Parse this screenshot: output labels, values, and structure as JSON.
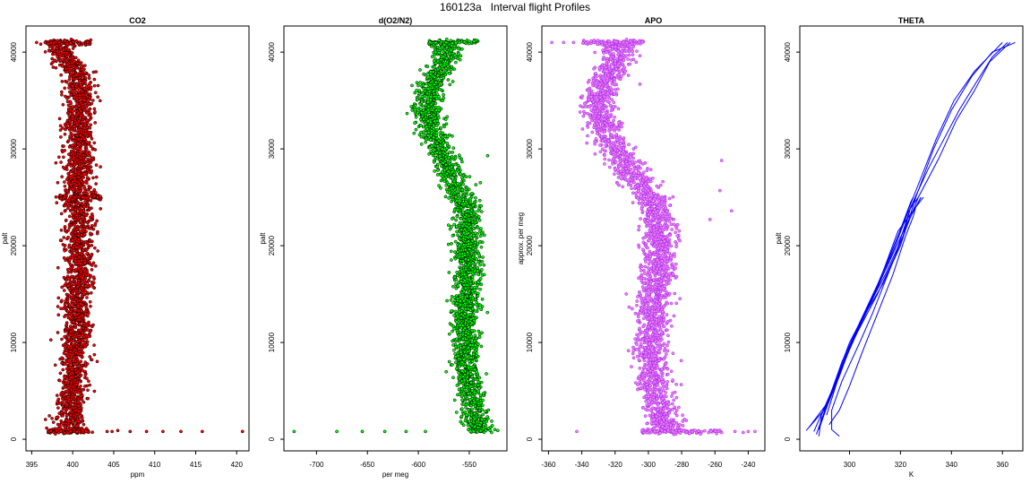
{
  "title": "160123a   Interval flight Profiles",
  "chart_data": [
    {
      "type": "scatter",
      "title": "CO2",
      "xlabel": "ppm",
      "ylabel": "palt",
      "xticks": [
        395,
        400,
        405,
        410,
        415,
        420
      ],
      "yticks": [
        0,
        10000,
        20000,
        30000,
        40000
      ],
      "xlim": [
        394.3,
        421.5
      ],
      "ylim": [
        -1200,
        42700
      ],
      "color": "#ff0000",
      "edge": "#000000",
      "profile": [
        [
          800,
          400.0
        ],
        [
          2000,
          399.6
        ],
        [
          4000,
          399.8
        ],
        [
          6000,
          400.1
        ],
        [
          8000,
          400.2
        ],
        [
          10000,
          400.3
        ],
        [
          12000,
          400.4
        ],
        [
          14000,
          400.3
        ],
        [
          16000,
          400.6
        ],
        [
          18000,
          400.9
        ],
        [
          20000,
          400.7
        ],
        [
          22000,
          400.9
        ],
        [
          24000,
          400.6
        ],
        [
          25000,
          400.5
        ],
        [
          26000,
          400.7
        ],
        [
          28000,
          400.9
        ],
        [
          30000,
          400.8
        ],
        [
          32000,
          400.6
        ],
        [
          34000,
          400.8
        ],
        [
          36000,
          401.0
        ],
        [
          38000,
          400.3
        ],
        [
          39500,
          399.1
        ],
        [
          41000,
          397.8
        ]
      ],
      "spread": 1.6,
      "outliers": [
        [
          395.6,
          41000
        ],
        [
          404.2,
          800
        ],
        [
          404.8,
          800
        ],
        [
          405.5,
          900
        ],
        [
          407.0,
          800
        ],
        [
          409.0,
          800
        ],
        [
          411.0,
          800
        ],
        [
          413.2,
          800
        ],
        [
          415.8,
          800
        ],
        [
          420.7,
          800
        ]
      ],
      "bands": [
        [
          41000,
          396.5,
          402.2
        ],
        [
          800,
          397.0,
          402.0
        ],
        [
          25000,
          398.3,
          403.5
        ]
      ]
    },
    {
      "type": "scatter",
      "title": "d(O2/N2)",
      "xlabel": "per meg",
      "ylabel": "palt",
      "xticks": [
        -700,
        -650,
        -600,
        -550
      ],
      "yticks": [
        0,
        10000,
        20000,
        30000,
        40000
      ],
      "xlim": [
        -732,
        -513
      ],
      "ylim": [
        -1200,
        42700
      ],
      "color": "#00ff00",
      "edge": "#000000",
      "profile": [
        [
          800,
          -540
        ],
        [
          2000,
          -544
        ],
        [
          4000,
          -548
        ],
        [
          6000,
          -551
        ],
        [
          8000,
          -553
        ],
        [
          10000,
          -553
        ],
        [
          12000,
          -554
        ],
        [
          14000,
          -554
        ],
        [
          16000,
          -553
        ],
        [
          18000,
          -552
        ],
        [
          20000,
          -552
        ],
        [
          22000,
          -552
        ],
        [
          24000,
          -554
        ],
        [
          25000,
          -557
        ],
        [
          26000,
          -562
        ],
        [
          28000,
          -570
        ],
        [
          30000,
          -580
        ],
        [
          32000,
          -586
        ],
        [
          34000,
          -592
        ],
        [
          36000,
          -588
        ],
        [
          38000,
          -580
        ],
        [
          39500,
          -572
        ],
        [
          41000,
          -572
        ]
      ],
      "spread": 12,
      "outliers": [
        [
          -722,
          800
        ],
        [
          -680,
          800
        ],
        [
          -655,
          800
        ],
        [
          -633,
          800
        ],
        [
          -612,
          800
        ],
        [
          -593,
          800
        ],
        [
          -528,
          700
        ],
        [
          -522,
          900
        ],
        [
          -606,
          34000
        ],
        [
          -525,
          1000
        ],
        [
          -532,
          29300
        ]
      ],
      "bands": [
        [
          41000,
          -590,
          -541
        ]
      ]
    },
    {
      "type": "scatter",
      "title": "APO",
      "xlabel": "",
      "ylabel": "approx. per meg",
      "xticks": [
        -360,
        -340,
        -320,
        -300,
        -280,
        -260,
        -240
      ],
      "yticks": [
        0,
        10000,
        20000,
        30000,
        40000
      ],
      "xlim": [
        -364,
        -230
      ],
      "ylim": [
        -1200,
        42700
      ],
      "color": "#ee82ee",
      "edge": "#a020f0",
      "profile": [
        [
          800,
          -290
        ],
        [
          2000,
          -292
        ],
        [
          4000,
          -295
        ],
        [
          6000,
          -297
        ],
        [
          8000,
          -298
        ],
        [
          10000,
          -298
        ],
        [
          12000,
          -297
        ],
        [
          14000,
          -297
        ],
        [
          16000,
          -296
        ],
        [
          18000,
          -294
        ],
        [
          20000,
          -294
        ],
        [
          22000,
          -294
        ],
        [
          24000,
          -296
        ],
        [
          25000,
          -299
        ],
        [
          26000,
          -303
        ],
        [
          28000,
          -311
        ],
        [
          30000,
          -320
        ],
        [
          32000,
          -326
        ],
        [
          34000,
          -330
        ],
        [
          36000,
          -328
        ],
        [
          38000,
          -323
        ],
        [
          39500,
          -318
        ],
        [
          41000,
          -319
        ]
      ],
      "spread": 9,
      "outliers": [
        [
          -358,
          41000
        ],
        [
          -351,
          41000
        ],
        [
          -345,
          41000
        ],
        [
          -341,
          33800
        ],
        [
          -337,
          30600
        ],
        [
          -343,
          800
        ],
        [
          -248,
          800
        ],
        [
          -243,
          700
        ],
        [
          -240,
          800
        ],
        [
          -236,
          800
        ],
        [
          -257,
          25700
        ],
        [
          -250,
          23600
        ],
        [
          -263,
          22700
        ],
        [
          -256,
          28800
        ]
      ],
      "bands": [
        [
          41000,
          -340,
          -303
        ],
        [
          800,
          -305,
          -255
        ]
      ]
    },
    {
      "type": "line",
      "title": "THETA",
      "xlabel": "K",
      "ylabel": "palt",
      "xticks": [
        300,
        320,
        340,
        360
      ],
      "yticks": [
        0,
        10000,
        20000,
        30000,
        40000
      ],
      "xlim": [
        280.5,
        368
      ],
      "ylim": [
        -1200,
        42700
      ],
      "color": "#0000ff",
      "series": [
        {
          "points": [
            [
              283,
              900
            ],
            [
              290,
              3000
            ],
            [
              296,
              7000
            ],
            [
              303,
              11000
            ],
            [
              311,
              15000
            ],
            [
              318,
              19000
            ],
            [
              324,
              24000
            ],
            [
              331,
              28000
            ],
            [
              337,
              31000
            ],
            [
              343,
              34000
            ],
            [
              350,
              37000
            ],
            [
              356,
              39500
            ],
            [
              362,
              41000
            ]
          ]
        },
        {
          "points": [
            [
              287,
              500
            ],
            [
              291,
              3500
            ],
            [
              297,
              8000
            ],
            [
              304,
              12000
            ],
            [
              313,
              16000
            ],
            [
              320,
              20000
            ],
            [
              326,
              25000
            ],
            [
              333,
              30000
            ],
            [
              340,
              34000
            ],
            [
              348,
              37500
            ],
            [
              356,
              40000
            ],
            [
              365,
              41000
            ]
          ]
        },
        {
          "points": [
            [
              288,
              300
            ],
            [
              289,
              2500
            ],
            [
              295,
              6000
            ],
            [
              301,
              10000
            ],
            [
              308,
              14000
            ],
            [
              316,
              19000
            ],
            [
              322,
              23000
            ],
            [
              328,
              27000
            ],
            [
              334,
              31000
            ],
            [
              341,
              35000
            ],
            [
              349,
              38000
            ],
            [
              360,
              41000
            ]
          ]
        },
        {
          "points": [
            [
              284,
              1200
            ],
            [
              292,
              4000
            ],
            [
              299,
              9000
            ],
            [
              306,
              13000
            ],
            [
              314,
              17000
            ],
            [
              321,
              21000
            ],
            [
              327,
              25000
            ],
            [
              335,
              29000
            ],
            [
              342,
              33000
            ],
            [
              349,
              36000
            ],
            [
              355,
              39000
            ],
            [
              363,
              41000
            ]
          ]
        },
        {
          "points": [
            [
              286,
              800
            ],
            [
              293,
              5000
            ],
            [
              300,
              10000
            ],
            [
              307,
              13500
            ],
            [
              315,
              18000
            ],
            [
              322,
              22000
            ],
            [
              328,
              25000
            ]
          ]
        },
        {
          "points": [
            [
              288,
              1000
            ],
            [
              294,
              5500
            ],
            [
              302,
              10500
            ],
            [
              310,
              15000
            ],
            [
              318,
              20000
            ],
            [
              323,
              23500
            ],
            [
              327,
              25000
            ]
          ]
        },
        {
          "points": [
            [
              289,
              2000
            ],
            [
              296,
              6500
            ],
            [
              303,
              11500
            ],
            [
              311,
              16000
            ],
            [
              319,
              21000
            ],
            [
              324,
              24500
            ],
            [
              325,
              25000
            ]
          ]
        },
        {
          "points": [
            [
              291,
              2500
            ],
            [
              297,
              7500
            ],
            [
              305,
              12500
            ],
            [
              312,
              16500
            ],
            [
              319,
              21500
            ],
            [
              326,
              24000
            ],
            [
              328,
              25000
            ]
          ]
        },
        {
          "points": [
            [
              292,
              1500
            ],
            [
              296,
              3000
            ],
            [
              300,
              5500
            ],
            [
              305,
              9000
            ],
            [
              311,
              13000
            ],
            [
              317,
              17000
            ],
            [
              322,
              21000
            ],
            [
              325,
              23000
            ],
            [
              326,
              24000
            ],
            [
              329,
              25000
            ]
          ]
        },
        {
          "points": [
            [
              296,
              300
            ],
            [
              293,
              1000
            ],
            [
              293,
              3000
            ],
            [
              297,
              6000
            ],
            [
              304,
              10000
            ],
            [
              309,
              13000
            ],
            [
              315,
              17000
            ],
            [
              321,
              21000
            ],
            [
              324,
              24000
            ],
            [
              326,
              25000
            ]
          ]
        }
      ]
    }
  ]
}
